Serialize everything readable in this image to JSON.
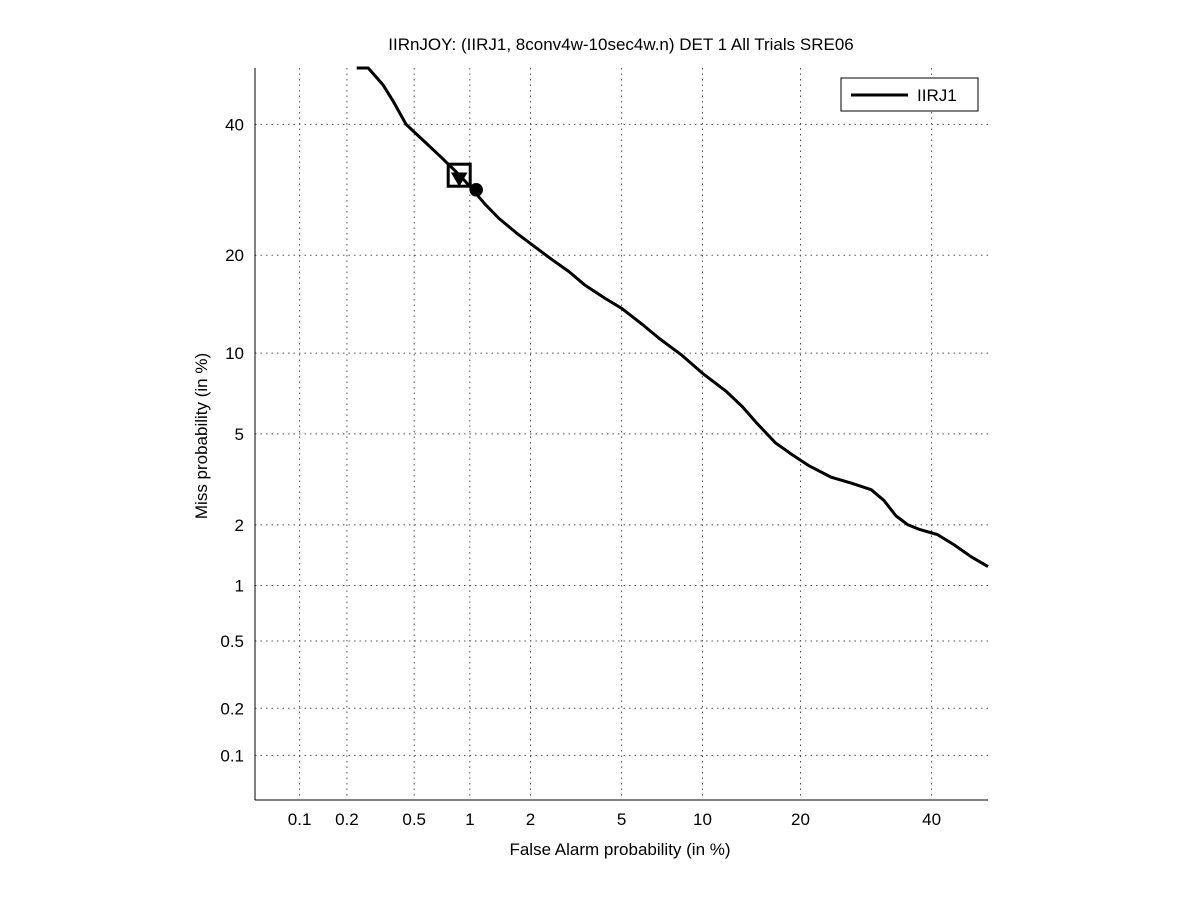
{
  "chart_data": {
    "type": "line",
    "title": "IIRnJOY: (IIRJ1, 8conv4w-10sec4w.n) DET 1 All Trials SRE06",
    "xlabel": "False Alarm probability (in %)",
    "ylabel": "Miss probability (in %)",
    "scale": "normal-deviate (probit) on both axes",
    "xlim": [
      0.05,
      50
    ],
    "ylim": [
      0.05,
      50
    ],
    "x_ticks": [
      0.1,
      0.2,
      0.5,
      1,
      2,
      5,
      10,
      20,
      40
    ],
    "x_tick_labels": [
      "0.1",
      "0.2",
      "0.5",
      "1",
      "2",
      "5",
      "10",
      "20",
      "40"
    ],
    "y_ticks": [
      0.1,
      0.2,
      0.5,
      1,
      2,
      5,
      10,
      20,
      40
    ],
    "y_tick_labels": [
      "0.1",
      "0.2",
      "0.5",
      "1",
      "2",
      "5",
      "10",
      "20",
      "40"
    ],
    "grid": true,
    "legend_position": "top-right",
    "series": [
      {
        "name": "IIRJ1",
        "color": "#000000",
        "points": [
          [
            0.23,
            55
          ],
          [
            0.27,
            50
          ],
          [
            0.33,
            47
          ],
          [
            0.38,
            44
          ],
          [
            0.45,
            40
          ],
          [
            0.55,
            37.5
          ],
          [
            0.7,
            34.5
          ],
          [
            0.85,
            32
          ],
          [
            0.95,
            30.5
          ],
          [
            1.05,
            29
          ],
          [
            1.2,
            27
          ],
          [
            1.4,
            25
          ],
          [
            1.7,
            23
          ],
          [
            2.0,
            21.5
          ],
          [
            2.5,
            19.5
          ],
          [
            3.0,
            18
          ],
          [
            3.5,
            16.5
          ],
          [
            4.3,
            15
          ],
          [
            5.0,
            14
          ],
          [
            6.0,
            12.5
          ],
          [
            7.0,
            11.2
          ],
          [
            8.5,
            9.8
          ],
          [
            10.0,
            8.5
          ],
          [
            12.0,
            7.3
          ],
          [
            13.5,
            6.4
          ],
          [
            15.0,
            5.5
          ],
          [
            17.0,
            4.6
          ],
          [
            19.0,
            4.1
          ],
          [
            21.0,
            3.7
          ],
          [
            24.0,
            3.3
          ],
          [
            27.0,
            3.1
          ],
          [
            30.0,
            2.9
          ],
          [
            32.0,
            2.6
          ],
          [
            34.0,
            2.2
          ],
          [
            36.0,
            2.0
          ],
          [
            38.0,
            1.9
          ],
          [
            41.0,
            1.8
          ],
          [
            44.0,
            1.6
          ],
          [
            47.0,
            1.4
          ],
          [
            50.0,
            1.25
          ]
        ]
      }
    ],
    "markers": [
      {
        "name": "actual-decision-point",
        "shape": "square",
        "x": 0.88,
        "y": 31.5
      },
      {
        "name": "min-dcf-point",
        "shape": "triangle-down",
        "x": 0.88,
        "y": 31.0
      },
      {
        "name": "eer-circle-point",
        "shape": "circle",
        "x": 1.08,
        "y": 29.2
      }
    ]
  }
}
